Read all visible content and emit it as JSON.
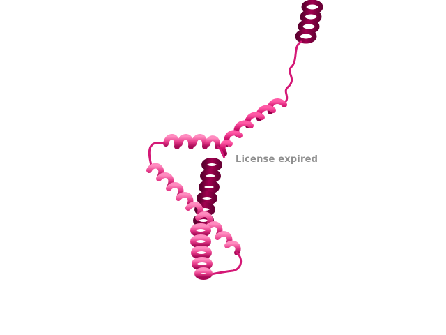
{
  "watermark": {
    "text": "License expired"
  },
  "colors": {
    "background": "#ffffff",
    "helix_dark": "#8a0046",
    "helix_mid": "#d0106e",
    "helix_light": "#ee4a94",
    "coil": "#d41876",
    "watermark": "#8f8f8f"
  }
}
